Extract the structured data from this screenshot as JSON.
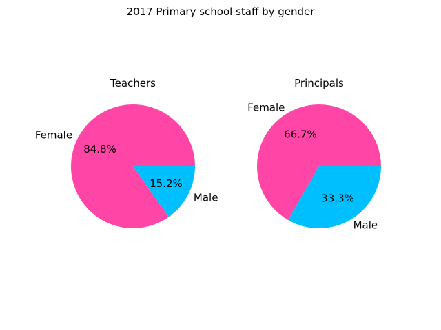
{
  "figure": {
    "title": "2017 Primary school staff by gender"
  },
  "chart_data": [
    {
      "type": "pie",
      "title": "Teachers",
      "categories": [
        "Female",
        "Male"
      ],
      "values": [
        84.8,
        15.2
      ],
      "labels": [
        "84.8%",
        "15.2%"
      ],
      "colors": [
        "#ff46a7",
        "#00bfff"
      ]
    },
    {
      "type": "pie",
      "title": "Principals",
      "categories": [
        "Female",
        "Male"
      ],
      "values": [
        66.7,
        33.3
      ],
      "labels": [
        "66.7%",
        "33.3%"
      ],
      "colors": [
        "#ff46a7",
        "#00bfff"
      ]
    }
  ]
}
